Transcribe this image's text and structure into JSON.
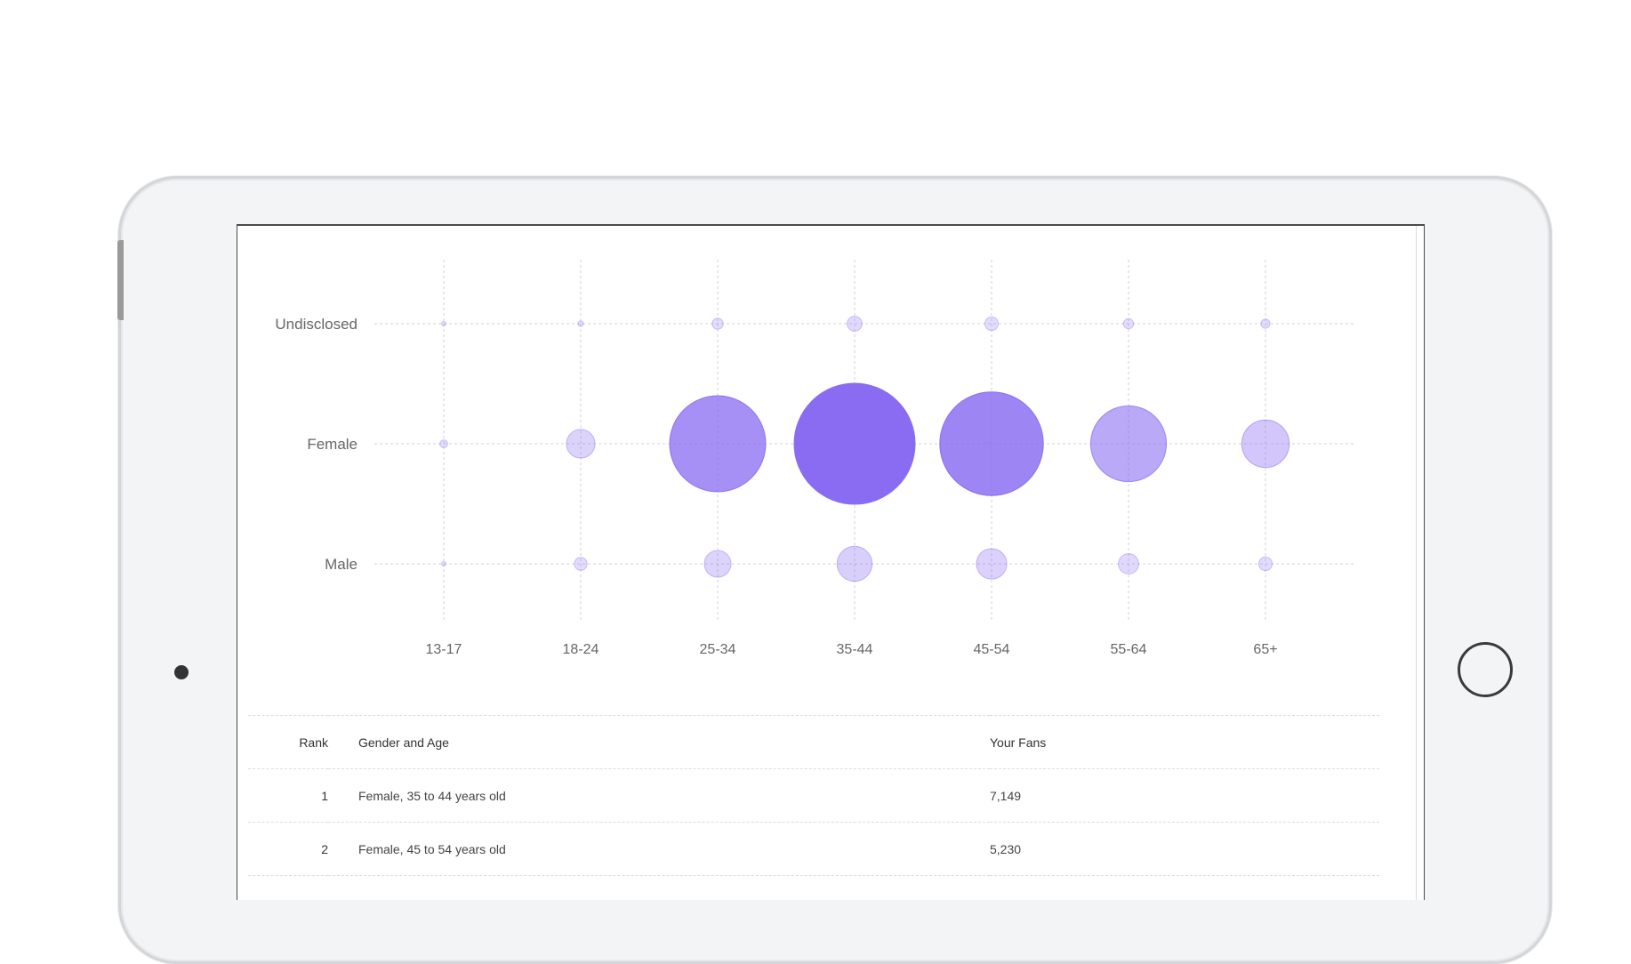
{
  "colors": {
    "accent": "#8a6cf2",
    "grid": "#d0d0d8",
    "axis_text": "#666666"
  },
  "chart_data": {
    "type": "bubble",
    "title": "",
    "xlabel": "",
    "ylabel": "",
    "categories": [
      "13-17",
      "18-24",
      "25-34",
      "35-44",
      "45-54",
      "55-64",
      "65+"
    ],
    "y_categories": [
      "Undisclosed",
      "Female",
      "Male"
    ],
    "series": [
      {
        "name": "Undisclosed",
        "values": [
          5,
          15,
          60,
          110,
          90,
          50,
          40
        ]
      },
      {
        "name": "Female",
        "values": [
          30,
          400,
          4500,
          7149,
          5230,
          2800,
          1100
        ]
      },
      {
        "name": "Male",
        "values": [
          5,
          80,
          350,
          600,
          450,
          200,
          90
        ]
      }
    ],
    "grid": true,
    "legend": "none"
  },
  "table": {
    "headers": {
      "rank": "Rank",
      "gender_age": "Gender and Age",
      "fans": "Your Fans"
    },
    "rows": [
      {
        "rank": "1",
        "gender_age": "Female, 35 to 44 years old",
        "fans": "7,149"
      },
      {
        "rank": "2",
        "gender_age": "Female, 45 to 54 years old",
        "fans": "5,230"
      }
    ]
  }
}
